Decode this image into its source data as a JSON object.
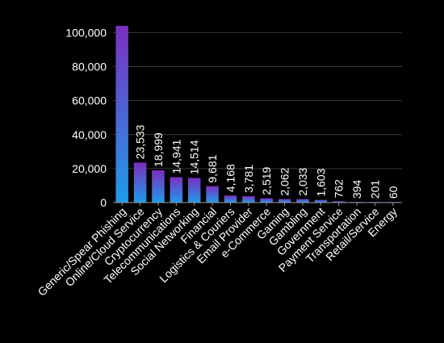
{
  "chart_data": {
    "type": "bar",
    "title": "",
    "xlabel": "",
    "ylabel": "",
    "ylim": [
      0,
      104000
    ],
    "yticks": [
      0,
      20000,
      40000,
      60000,
      80000,
      100000
    ],
    "ytick_labels": [
      "0",
      "20,000",
      "40,000",
      "60,000",
      "80,000",
      "100,000"
    ],
    "grid": true,
    "legend": "none",
    "categories": [
      "Generic/Spear Phishing",
      "Online/Cloud Service",
      "Cryptocurrency",
      "Telecommunications",
      "Social Networking",
      "Financial",
      "Logistics & Couriers",
      "Email Provider",
      "e-Commerce",
      "Gaming",
      "Gambling",
      "Government",
      "Payment Service",
      "Transportation",
      "Retail/Service",
      "Energy"
    ],
    "values": [
      104000,
      23533,
      18999,
      14941,
      14514,
      9681,
      4168,
      3781,
      2519,
      2062,
      2033,
      1603,
      762,
      394,
      201,
      60
    ],
    "data_labels": [
      "",
      "23,533",
      "18,999",
      "14,941",
      "14,514",
      "9,681",
      "4,168",
      "3,781",
      "2,519",
      "2,062",
      "2,033",
      "1,603",
      "762",
      "394",
      "201",
      "60"
    ],
    "colors": {
      "bar_top": "#7B2FBE",
      "bar_bottom": "#1E9BE8",
      "grid": "#3a3a3a",
      "axis": "#9a9a9a",
      "text": "#ffffff",
      "background": "#000000"
    }
  }
}
